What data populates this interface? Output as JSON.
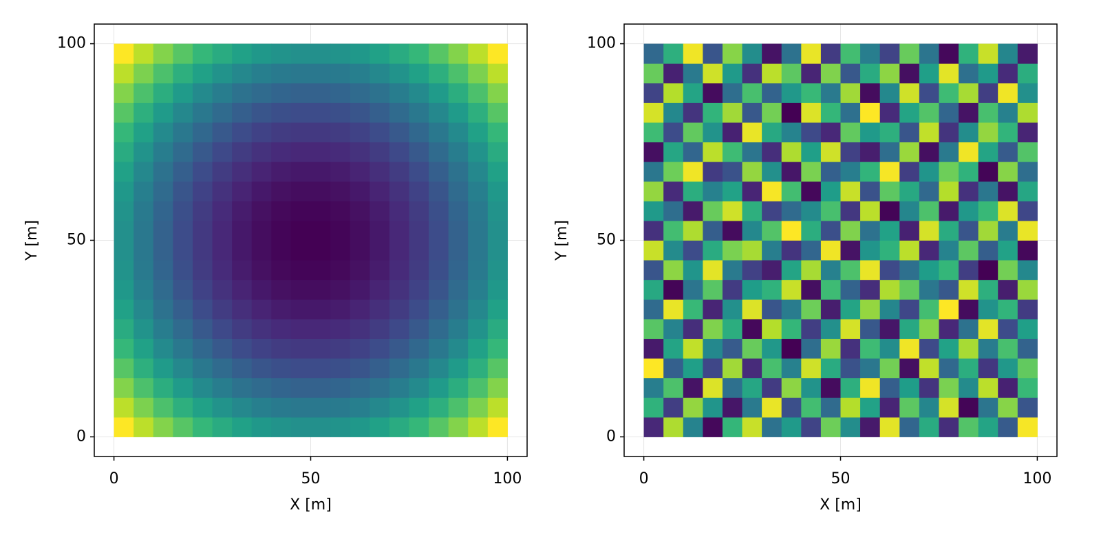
{
  "chart_data": [
    {
      "type": "heatmap",
      "colormap": "viridis",
      "xlabel": "X [m]",
      "ylabel": "Y [m]",
      "xlim": [
        -5,
        105
      ],
      "ylim": [
        -5,
        105
      ],
      "xticks": [
        0,
        50,
        100
      ],
      "yticks": [
        0,
        50,
        100
      ],
      "grid": true,
      "x": [
        2.5,
        7.5,
        12.5,
        17.5,
        22.5,
        27.5,
        32.5,
        37.5,
        42.5,
        47.5,
        52.5,
        57.5,
        62.5,
        67.5,
        72.5,
        77.5,
        82.5,
        87.5,
        92.5,
        97.5
      ],
      "y": [
        2.5,
        7.5,
        12.5,
        17.5,
        22.5,
        27.5,
        32.5,
        37.5,
        42.5,
        47.5,
        52.5,
        57.5,
        62.5,
        67.5,
        72.5,
        77.5,
        82.5,
        87.5,
        92.5,
        97.5
      ],
      "z": [
        [
          0.9,
          0.81,
          0.73,
          0.66,
          0.6,
          0.55,
          0.51,
          0.48,
          0.46,
          0.45,
          0.45,
          0.46,
          0.48,
          0.51,
          0.55,
          0.6,
          0.66,
          0.73,
          0.81,
          0.9
        ],
        [
          0.81,
          0.72,
          0.64,
          0.57,
          0.51,
          0.46,
          0.42,
          0.39,
          0.37,
          0.36,
          0.36,
          0.37,
          0.39,
          0.42,
          0.46,
          0.51,
          0.57,
          0.64,
          0.72,
          0.81
        ],
        [
          0.73,
          0.64,
          0.56,
          0.49,
          0.43,
          0.38,
          0.34,
          0.31,
          0.29,
          0.28,
          0.28,
          0.29,
          0.31,
          0.34,
          0.38,
          0.43,
          0.49,
          0.56,
          0.64,
          0.73
        ],
        [
          0.66,
          0.57,
          0.49,
          0.42,
          0.36,
          0.31,
          0.27,
          0.24,
          0.22,
          0.21,
          0.21,
          0.22,
          0.24,
          0.27,
          0.31,
          0.36,
          0.42,
          0.49,
          0.57,
          0.66
        ],
        [
          0.6,
          0.51,
          0.43,
          0.36,
          0.3,
          0.25,
          0.21,
          0.18,
          0.16,
          0.15,
          0.15,
          0.16,
          0.18,
          0.21,
          0.25,
          0.3,
          0.36,
          0.43,
          0.51,
          0.6
        ],
        [
          0.55,
          0.46,
          0.38,
          0.31,
          0.25,
          0.2,
          0.16,
          0.13,
          0.11,
          0.1,
          0.1,
          0.11,
          0.13,
          0.16,
          0.2,
          0.25,
          0.31,
          0.38,
          0.46,
          0.55
        ],
        [
          0.51,
          0.42,
          0.34,
          0.27,
          0.21,
          0.16,
          0.12,
          0.09,
          0.07,
          0.06,
          0.06,
          0.07,
          0.09,
          0.12,
          0.16,
          0.21,
          0.27,
          0.34,
          0.42,
          0.51
        ],
        [
          0.48,
          0.39,
          0.31,
          0.24,
          0.18,
          0.13,
          0.09,
          0.06,
          0.04,
          0.03,
          0.03,
          0.04,
          0.06,
          0.09,
          0.13,
          0.18,
          0.24,
          0.31,
          0.39,
          0.48
        ],
        [
          0.46,
          0.37,
          0.29,
          0.22,
          0.16,
          0.11,
          0.07,
          0.04,
          0.02,
          0.01,
          0.01,
          0.02,
          0.04,
          0.07,
          0.11,
          0.16,
          0.22,
          0.29,
          0.37,
          0.46
        ],
        [
          0.45,
          0.36,
          0.28,
          0.21,
          0.15,
          0.1,
          0.06,
          0.03,
          0.01,
          0,
          0,
          0.01,
          0.03,
          0.06,
          0.1,
          0.15,
          0.21,
          0.28,
          0.36,
          0.45
        ],
        [
          0.45,
          0.36,
          0.28,
          0.21,
          0.15,
          0.1,
          0.06,
          0.03,
          0.01,
          0,
          0,
          0.01,
          0.03,
          0.06,
          0.1,
          0.15,
          0.21,
          0.28,
          0.36,
          0.45
        ],
        [
          0.46,
          0.37,
          0.29,
          0.22,
          0.16,
          0.11,
          0.07,
          0.04,
          0.02,
          0.01,
          0.01,
          0.02,
          0.04,
          0.07,
          0.11,
          0.16,
          0.22,
          0.29,
          0.37,
          0.46
        ],
        [
          0.48,
          0.39,
          0.31,
          0.24,
          0.18,
          0.13,
          0.09,
          0.06,
          0.04,
          0.03,
          0.03,
          0.04,
          0.06,
          0.09,
          0.13,
          0.18,
          0.24,
          0.31,
          0.39,
          0.48
        ],
        [
          0.51,
          0.42,
          0.34,
          0.27,
          0.21,
          0.16,
          0.12,
          0.09,
          0.07,
          0.06,
          0.06,
          0.07,
          0.09,
          0.12,
          0.16,
          0.21,
          0.27,
          0.34,
          0.42,
          0.51
        ],
        [
          0.55,
          0.46,
          0.38,
          0.31,
          0.25,
          0.2,
          0.16,
          0.13,
          0.11,
          0.1,
          0.1,
          0.11,
          0.13,
          0.16,
          0.2,
          0.25,
          0.31,
          0.38,
          0.46,
          0.55
        ],
        [
          0.6,
          0.51,
          0.43,
          0.36,
          0.3,
          0.25,
          0.21,
          0.18,
          0.16,
          0.15,
          0.15,
          0.16,
          0.18,
          0.21,
          0.25,
          0.3,
          0.36,
          0.43,
          0.51,
          0.6
        ],
        [
          0.66,
          0.57,
          0.49,
          0.42,
          0.36,
          0.31,
          0.27,
          0.24,
          0.22,
          0.21,
          0.21,
          0.22,
          0.24,
          0.27,
          0.31,
          0.36,
          0.42,
          0.49,
          0.57,
          0.66
        ],
        [
          0.73,
          0.64,
          0.56,
          0.49,
          0.43,
          0.38,
          0.34,
          0.31,
          0.29,
          0.28,
          0.28,
          0.29,
          0.31,
          0.34,
          0.38,
          0.43,
          0.49,
          0.56,
          0.64,
          0.73
        ],
        [
          0.81,
          0.72,
          0.64,
          0.57,
          0.51,
          0.46,
          0.42,
          0.39,
          0.37,
          0.36,
          0.36,
          0.37,
          0.39,
          0.42,
          0.46,
          0.51,
          0.57,
          0.64,
          0.72,
          0.81
        ],
        [
          0.9,
          0.81,
          0.73,
          0.66,
          0.6,
          0.55,
          0.51,
          0.48,
          0.46,
          0.45,
          0.45,
          0.46,
          0.48,
          0.51,
          0.55,
          0.6,
          0.66,
          0.73,
          0.81,
          0.9
        ]
      ]
    },
    {
      "type": "heatmap",
      "colormap": "viridis",
      "xlabel": "X [m]",
      "ylabel": "Y [m]",
      "xlim": [
        -5,
        105
      ],
      "ylim": [
        -5,
        105
      ],
      "xticks": [
        0,
        50,
        100
      ],
      "yticks": [
        0,
        50,
        100
      ],
      "grid": true,
      "x": [
        2.5,
        7.5,
        12.5,
        17.5,
        22.5,
        27.5,
        32.5,
        37.5,
        42.5,
        47.5,
        52.5,
        57.5,
        62.5,
        67.5,
        72.5,
        77.5,
        82.5,
        87.5,
        92.5,
        97.5
      ],
      "y": [
        2.5,
        7.5,
        12.5,
        17.5,
        22.5,
        27.5,
        32.5,
        37.5,
        42.5,
        47.5,
        52.5,
        57.5,
        62.5,
        67.5,
        72.5,
        77.5,
        82.5,
        87.5,
        92.5,
        97.5
      ],
      "z": [
        [
          0.12,
          0.87,
          0.45,
          0.03,
          0.66,
          0.91,
          0.38,
          0.54,
          0.21,
          0.77,
          0.49,
          0.08,
          0.95,
          0.33,
          0.61,
          0.14,
          0.72,
          0.58,
          0.29,
          0.98
        ],
        [
          0.64,
          0.19,
          0.83,
          0.52,
          0.07,
          0.41,
          0.96,
          0.25,
          0.69,
          0.35,
          0.88,
          0.57,
          0.11,
          0.74,
          0.46,
          0.93,
          0.02,
          0.39,
          0.81,
          0.27
        ],
        [
          0.43,
          0.71,
          0.06,
          0.94,
          0.37,
          0.59,
          0.18,
          0.82,
          0.51,
          0.04,
          0.63,
          0.97,
          0.3,
          0.55,
          0.16,
          0.79,
          0.48,
          0.89,
          0.1,
          0.67
        ],
        [
          0.99,
          0.31,
          0.56,
          0.22,
          0.85,
          0.13,
          0.7,
          0.44,
          0.92,
          0.61,
          0.26,
          0.4,
          0.78,
          0.05,
          0.9,
          0.34,
          0.62,
          0.17,
          0.53,
          0.75
        ],
        [
          0.08,
          0.58,
          0.9,
          0.47,
          0.29,
          0.76,
          0.53,
          0.01,
          0.36,
          0.84,
          0.15,
          0.68,
          0.49,
          0.97,
          0.23,
          0.57,
          0.86,
          0.42,
          0.7,
          0.32
        ],
        [
          0.73,
          0.45,
          0.14,
          0.8,
          0.62,
          0.03,
          0.88,
          0.66,
          0.19,
          0.5,
          0.93,
          0.28,
          0.07,
          0.6,
          0.81,
          0.12,
          0.38,
          0.95,
          0.24,
          0.56
        ],
        [
          0.35,
          0.96,
          0.67,
          0.11,
          0.5,
          0.94,
          0.27,
          0.42,
          0.77,
          0.09,
          0.58,
          0.83,
          0.46,
          0.22,
          0.69,
          0.99,
          0.04,
          0.51,
          0.65,
          0.18
        ],
        [
          0.6,
          0.02,
          0.39,
          0.73,
          0.18,
          0.55,
          0.64,
          0.91,
          0.05,
          0.68,
          0.32,
          0.14,
          0.87,
          0.75,
          0.4,
          0.28,
          0.92,
          0.63,
          0.09,
          0.84
        ],
        [
          0.27,
          0.82,
          0.52,
          0.95,
          0.41,
          0.2,
          0.09,
          0.58,
          0.86,
          0.44,
          0.71,
          0.96,
          0.23,
          0.37,
          0.55,
          0.66,
          0.19,
          0.01,
          0.78,
          0.47
        ],
        [
          0.91,
          0.48,
          0.24,
          0.61,
          0.79,
          0.86,
          0.43,
          0.16,
          0.33,
          0.97,
          0.06,
          0.52,
          0.64,
          0.89,
          0.12,
          0.45,
          0.74,
          0.3,
          0.57,
          0.03
        ],
        [
          0.15,
          0.69,
          0.87,
          0.3,
          0.04,
          0.47,
          0.72,
          0.99,
          0.62,
          0.25,
          0.8,
          0.38,
          0.57,
          0.1,
          0.93,
          0.61,
          0.27,
          0.85,
          0.42,
          0.96
        ],
        [
          0.54,
          0.36,
          0.08,
          0.76,
          0.92,
          0.63,
          0.21,
          0.35,
          0.48,
          0.7,
          0.17,
          0.89,
          0.02,
          0.46,
          0.71,
          0.08,
          0.53,
          0.67,
          0.94,
          0.22
        ],
        [
          0.83,
          0.13,
          0.62,
          0.44,
          0.57,
          0.11,
          0.98,
          0.69,
          0.03,
          0.55,
          0.91,
          0.26,
          0.74,
          0.6,
          0.34,
          0.88,
          0.15,
          0.4,
          0.06,
          0.59
        ],
        [
          0.4,
          0.77,
          0.97,
          0.18,
          0.26,
          0.83,
          0.5,
          0.07,
          0.79,
          0.31,
          0.43,
          0.65,
          0.98,
          0.19,
          0.52,
          0.77,
          0.64,
          0.02,
          0.81,
          0.36
        ],
        [
          0.05,
          0.59,
          0.33,
          0.89,
          0.68,
          0.39,
          0.14,
          0.87,
          0.56,
          0.92,
          0.2,
          0.09,
          0.36,
          0.84,
          0.05,
          0.41,
          0.97,
          0.58,
          0.29,
          0.72
        ],
        [
          0.68,
          0.24,
          0.75,
          0.51,
          0.1,
          0.96,
          0.6,
          0.45,
          0.23,
          0.12,
          0.75,
          0.54,
          0.63,
          0.27,
          0.9,
          0.16,
          0.49,
          0.83,
          0.65,
          0.11
        ],
        [
          0.93,
          0.47,
          0.16,
          0.65,
          0.85,
          0.28,
          0.78,
          0.01,
          0.94,
          0.66,
          0.37,
          0.99,
          0.13,
          0.58,
          0.72,
          0.33,
          0.06,
          0.7,
          0.44,
          0.87
        ],
        [
          0.21,
          0.88,
          0.58,
          0.04,
          0.36,
          0.7,
          0.32,
          0.53,
          0.67,
          0.41,
          0.85,
          0.04,
          0.47,
          0.92,
          0.24,
          0.68,
          0.86,
          0.19,
          0.97,
          0.5
        ],
        [
          0.76,
          0.1,
          0.41,
          0.92,
          0.54,
          0.15,
          0.89,
          0.74,
          0.11,
          0.8,
          0.28,
          0.61,
          0.82,
          0.05,
          0.56,
          0.95,
          0.37,
          0.54,
          0.13,
          0.62
        ],
        [
          0.34,
          0.63,
          0.97,
          0.27,
          0.81,
          0.49,
          0.06,
          0.38,
          0.96,
          0.18,
          0.69,
          0.43,
          0.21,
          0.76,
          0.39,
          0.03,
          0.64,
          0.91,
          0.46,
          0.08
        ]
      ]
    }
  ]
}
